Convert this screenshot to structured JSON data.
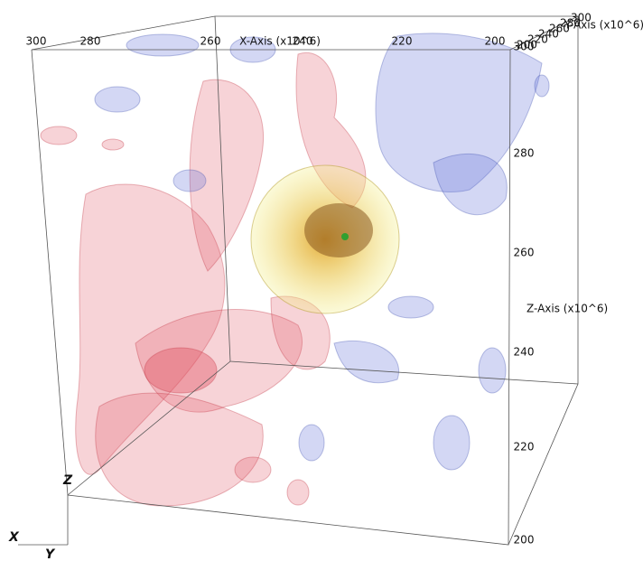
{
  "axes": {
    "x": {
      "label": "X-Axis (x10^6)",
      "ticks": [
        300,
        280,
        260,
        240,
        220,
        200
      ]
    },
    "y": {
      "label": "Y-Axis (x10^6)",
      "ticks": [
        200,
        220,
        240,
        260,
        280,
        300
      ]
    },
    "z": {
      "label": "Z-Axis (x10^6)",
      "ticks": [
        300,
        280,
        260,
        240,
        220,
        200
      ]
    }
  },
  "orientation": {
    "x": "X",
    "y": "Y",
    "z": "Z"
  }
}
